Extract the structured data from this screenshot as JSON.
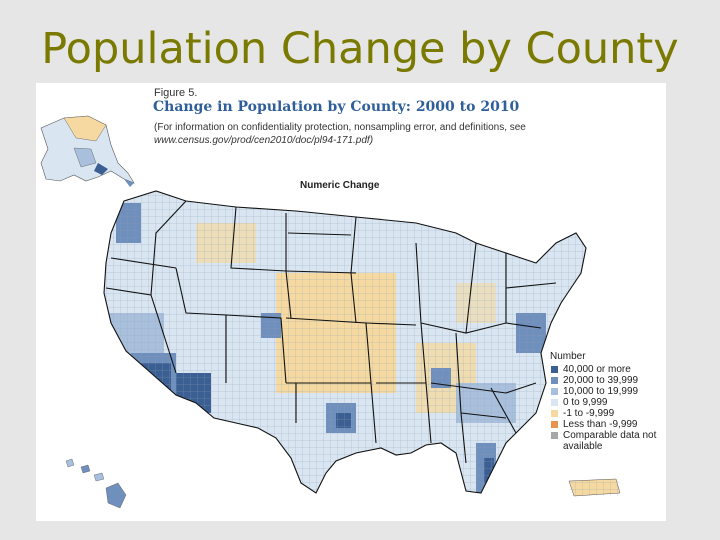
{
  "slide": {
    "title": "Population Change by County"
  },
  "figure": {
    "label": "Figure 5.",
    "title": "Change in Population by County: 2000 to 2010",
    "note_line1": "(For information on confidentiality protection, nonsampling error, and definitions, see",
    "note_url": "www.census.gov/prod/cen2010/doc/pl94-171.pdf)",
    "map_heading": "Numeric Change"
  },
  "legend": {
    "title": "Number",
    "items": [
      {
        "label": "40,000 or more",
        "color": "#3b5f93"
      },
      {
        "label": "20,000 to 39,999",
        "color": "#6f8fbc"
      },
      {
        "label": "10,000 to 19,999",
        "color": "#a9c0dd"
      },
      {
        "label": "0 to 9,999",
        "color": "#d9e6f2"
      },
      {
        "label": "-1 to -9,999",
        "color": "#f5d9a0"
      },
      {
        "label": "Less than -9,999",
        "color": "#e8944a"
      },
      {
        "label": "Comparable data not available",
        "color": "#a6a6a6"
      }
    ]
  },
  "colors": {
    "title": "#7a7a00",
    "figure_title": "#2f5f9a",
    "state_border": "#111111"
  }
}
